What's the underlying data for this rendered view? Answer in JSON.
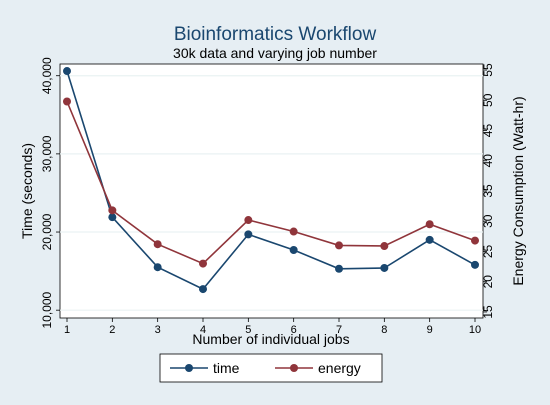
{
  "chart_data": {
    "type": "line",
    "title": "Bioinformatics Workflow",
    "subtitle": "30k data and varying job number",
    "xlabel": "Number of individual jobs",
    "ylabel_left": "Time (seconds)",
    "ylabel_right": "Energy Consumption (Watt-hr)",
    "x": [
      1,
      2,
      3,
      4,
      5,
      6,
      7,
      8,
      9,
      10
    ],
    "x_tick_labels": [
      "1",
      "2",
      "3",
      "4",
      "5",
      "6",
      "7",
      "8",
      "9",
      "10"
    ],
    "ylim_left": [
      9000,
      41500
    ],
    "ylim_right": [
      14,
      56
    ],
    "y_ticks_left": [
      10000,
      20000,
      30000,
      40000
    ],
    "y_tick_labels_left": [
      "10,000",
      "20,000",
      "30,000",
      "40,000"
    ],
    "y_ticks_right": [
      15,
      20,
      25,
      30,
      35,
      40,
      45,
      50,
      55
    ],
    "y_tick_labels_right": [
      "15",
      "20",
      "25",
      "30",
      "35",
      "40",
      "45",
      "50",
      "55"
    ],
    "grid": true,
    "legend_placement": "bottom",
    "series": [
      {
        "name": "time",
        "axis": "left",
        "color": "#1a476f",
        "values": [
          40600,
          21900,
          15500,
          12700,
          19700,
          17700,
          15300,
          15400,
          19000,
          15800
        ]
      },
      {
        "name": "energy",
        "axis": "right",
        "color": "#90353b",
        "values": [
          49.8,
          31.8,
          26.2,
          23.0,
          30.2,
          28.3,
          26.0,
          25.9,
          29.5,
          26.8
        ]
      }
    ]
  }
}
